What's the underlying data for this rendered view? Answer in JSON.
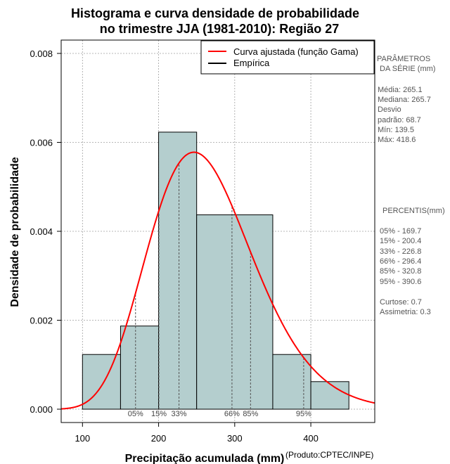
{
  "chart_data": {
    "type": "bar",
    "title": [
      "Histograma e curva densidade de probabilidade",
      "no trimestre JJA (1981-2010): Região 27"
    ],
    "xlabel": "Precipitação acumulada (mm)",
    "ylabel": "Densidade de probabilidade",
    "credit": "(Produto:CPTEC/INPE)",
    "xlim": [
      72,
      484
    ],
    "ylim": [
      -0.0003,
      0.0083
    ],
    "x_ticks": [
      100,
      200,
      300,
      400
    ],
    "y_ticks": [
      0.0,
      0.002,
      0.004,
      0.006,
      0.008
    ],
    "y_tick_labels": [
      "0.000",
      "0.002",
      "0.004",
      "0.006",
      "0.008"
    ],
    "bins": [
      {
        "start": 100,
        "end": 150,
        "density": 0.00123
      },
      {
        "start": 150,
        "end": 200,
        "density": 0.00187
      },
      {
        "start": 200,
        "end": 250,
        "density": 0.00623
      },
      {
        "start": 250,
        "end": 350,
        "density": 0.00437
      },
      {
        "start": 350,
        "end": 400,
        "density": 0.00123
      },
      {
        "start": 400,
        "end": 450,
        "density": 0.00062
      }
    ],
    "gamma_fit": {
      "shape": 13.9,
      "scale": 19.1
    },
    "percentile_markers": [
      {
        "label": "05%",
        "value": 169.7
      },
      {
        "label": "15%",
        "value": 200.4
      },
      {
        "label": "33%",
        "value": 226.8
      },
      {
        "label": "66%",
        "value": 296.4
      },
      {
        "label": "85%",
        "value": 320.8
      },
      {
        "label": "95%",
        "value": 390.6
      }
    ],
    "legend": [
      {
        "label": "Curva ajustada (função Gama)",
        "color": "#ff0000"
      },
      {
        "label": "Empírica",
        "color": "#000000"
      }
    ],
    "colors": {
      "bar_fill": "#b4cece",
      "curve": "#ff0000",
      "grid": "#a0a0a0",
      "marker": "#555555"
    },
    "parameters": {
      "heading": [
        "PARÂMETROS",
        "DA SÉRIE (mm)"
      ],
      "lines": [
        "Média:  265.1",
        "Mediana:  265.7",
        "Desvio",
        "padrão:  68.7",
        "Mín:  139.5",
        "Máx:  418.6"
      ]
    },
    "percentis": {
      "heading": "PERCENTIS(mm)",
      "lines": [
        "05% -   169.7",
        "15% -   200.4",
        "33% -   226.8",
        "66% -   296.4",
        "85% -   320.8",
        "95% -   390.6"
      ]
    },
    "shape_stats": [
      "Curtose:  0.7",
      "Assimetria:  0.3"
    ]
  }
}
